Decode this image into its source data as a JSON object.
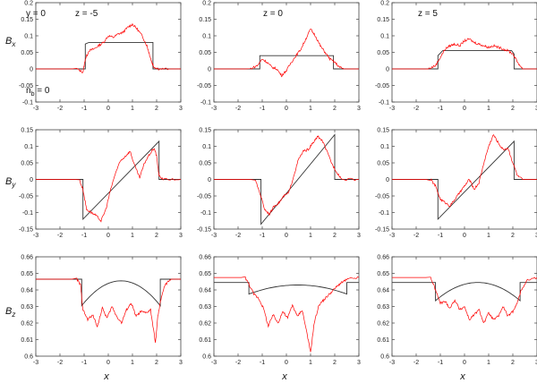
{
  "chart_data": {
    "type": "line",
    "layout": {
      "rows": 3,
      "columns": 3
    },
    "x_ticks": [
      "-3",
      "-2",
      "-1",
      "0",
      "1",
      "2",
      "3"
    ],
    "x_label_text": "x",
    "row_labels": [
      {
        "main": "B",
        "sub": "x"
      },
      {
        "main": "B",
        "sub": "y"
      },
      {
        "main": "B",
        "sub": "z"
      }
    ],
    "rows": [
      {
        "ylim": [
          -0.1,
          0.2
        ],
        "y_ticks": [
          "0.2",
          "0.15",
          "0.1",
          "0.05",
          "0",
          "-0.05",
          "-0.1"
        ],
        "y_tick_values": [
          0.2,
          0.15,
          0.1,
          0.05,
          0,
          -0.05,
          -0.1
        ]
      },
      {
        "ylim": [
          -0.15,
          0.15
        ],
        "y_ticks": [
          "0.15",
          "0.1",
          "0.05",
          "0",
          "-0.05",
          "-0.1",
          "-0.15"
        ],
        "y_tick_values": [
          0.15,
          0.1,
          0.05,
          0,
          -0.05,
          -0.1,
          -0.15
        ]
      },
      {
        "ylim": [
          0.6,
          0.66
        ],
        "y_ticks": [
          "0.66",
          "0.65",
          "0.64",
          "0.63",
          "0.62",
          "0.61",
          "0.6"
        ],
        "y_tick_values": [
          0.66,
          0.65,
          0.64,
          0.63,
          0.62,
          0.61,
          0.6
        ]
      }
    ],
    "annotations": [
      {
        "panel": 0,
        "text": "y = 0",
        "position": "top-left"
      },
      {
        "panel": 0,
        "text": "z = -5",
        "position": "top-center"
      },
      {
        "panel": 1,
        "text": "z = 0",
        "position": "top-center"
      },
      {
        "panel": 2,
        "text": "z = 5",
        "position": "top-center"
      },
      {
        "panel": 0,
        "text": "n_b = 0",
        "position": "bottom-left"
      }
    ],
    "colors": {
      "simulation": "#ff0000",
      "model": "#333333",
      "frame": "#444444"
    },
    "panels": [
      {
        "row": 0,
        "col": 0,
        "model": {
          "x": [
            -3,
            -0.95,
            -0.95,
            -0.8,
            1.85,
            1.85,
            3
          ],
          "y": [
            0,
            0,
            0.075,
            0.08,
            0.08,
            0,
            0
          ]
        },
        "sim": {
          "x": [
            -3,
            -1.3,
            -1.05,
            -0.95,
            -0.8,
            -0.6,
            -0.4,
            -0.2,
            0,
            0.2,
            0.4,
            0.6,
            0.8,
            1.0,
            1.2,
            1.4,
            1.6,
            1.7,
            1.8,
            1.9,
            2.1,
            2.5,
            3
          ],
          "y": [
            0,
            0,
            -0.01,
            0.03,
            0.055,
            0.06,
            0.07,
            0.08,
            0.1,
            0.095,
            0.105,
            0.11,
            0.125,
            0.135,
            0.12,
            0.1,
            0.07,
            0.045,
            0.02,
            0.005,
            0,
            0,
            0
          ]
        }
      },
      {
        "row": 0,
        "col": 1,
        "model": {
          "x": [
            -3,
            -1.1,
            -1.1,
            1.95,
            1.95,
            3
          ],
          "y": [
            0,
            0,
            0.04,
            0.04,
            0,
            0
          ]
        },
        "sim": {
          "x": [
            -3,
            -1.5,
            -1.2,
            -1.0,
            -0.8,
            -0.6,
            -0.4,
            -0.2,
            0,
            0.2,
            0.4,
            0.6,
            0.8,
            1.0,
            1.2,
            1.4,
            1.6,
            1.8,
            2.0,
            2.2,
            2.4,
            3
          ],
          "y": [
            0,
            0,
            0.01,
            0.03,
            0.02,
            0.005,
            0.0,
            -0.02,
            -0.005,
            0.02,
            0.04,
            0.06,
            0.09,
            0.12,
            0.1,
            0.07,
            0.05,
            0.03,
            0.02,
            0.005,
            0,
            0
          ]
        }
      },
      {
        "row": 0,
        "col": 2,
        "model": {
          "x": [
            -3,
            -1.1,
            -1.1,
            -0.9,
            1.95,
            2.05,
            2.05,
            3
          ],
          "y": [
            0,
            0,
            0.04,
            0.055,
            0.055,
            0.045,
            0,
            0
          ]
        },
        "sim": {
          "x": [
            -3,
            -1.5,
            -1.2,
            -1.0,
            -0.8,
            -0.6,
            -0.4,
            -0.2,
            0,
            0.2,
            0.4,
            0.6,
            0.8,
            1.0,
            1.2,
            1.4,
            1.6,
            1.8,
            2.0,
            2.2,
            2.4,
            3
          ],
          "y": [
            0,
            0,
            0.01,
            0.035,
            0.06,
            0.07,
            0.075,
            0.07,
            0.085,
            0.09,
            0.08,
            0.075,
            0.07,
            0.065,
            0.07,
            0.065,
            0.06,
            0.055,
            0.045,
            0.02,
            0,
            0
          ]
        }
      },
      {
        "row": 1,
        "col": 0,
        "model": {
          "x": [
            -3,
            -1.05,
            -1.05,
            2.1,
            2.1,
            3
          ],
          "y": [
            0,
            0,
            -0.12,
            0.115,
            0,
            0
          ]
        },
        "sim": {
          "x": [
            -3,
            -1.2,
            -1.05,
            -0.9,
            -0.7,
            -0.5,
            -0.3,
            -0.1,
            0.1,
            0.3,
            0.5,
            0.7,
            0.9,
            1.1,
            1.3,
            1.5,
            1.7,
            1.9,
            2.0,
            2.1,
            2.3,
            3
          ],
          "y": [
            0,
            0,
            -0.03,
            -0.09,
            -0.1,
            -0.11,
            -0.125,
            -0.09,
            -0.03,
            0.02,
            0.055,
            0.07,
            0.085,
            0.04,
            0.005,
            0.05,
            0.075,
            0.095,
            0.07,
            0.01,
            0,
            0
          ]
        }
      },
      {
        "row": 1,
        "col": 1,
        "model": {
          "x": [
            -3,
            -1.05,
            -1.05,
            2.0,
            2.0,
            3
          ],
          "y": [
            0,
            0,
            -0.135,
            0.135,
            0,
            0
          ]
        },
        "sim": {
          "x": [
            -3,
            -1.3,
            -1.1,
            -0.9,
            -0.7,
            -0.5,
            -0.3,
            -0.1,
            0.1,
            0.3,
            0.5,
            0.7,
            0.9,
            1.1,
            1.3,
            1.5,
            1.7,
            1.9,
            2.1,
            2.3,
            3
          ],
          "y": [
            0,
            0,
            -0.04,
            -0.09,
            -0.105,
            -0.08,
            -0.07,
            -0.05,
            -0.04,
            0.01,
            0.06,
            0.085,
            0.09,
            0.11,
            0.13,
            0.115,
            0.08,
            0.045,
            0.02,
            0,
            0
          ]
        }
      },
      {
        "row": 1,
        "col": 2,
        "model": {
          "x": [
            -3,
            -1.1,
            -1.1,
            2.05,
            2.05,
            3
          ],
          "y": [
            0,
            0,
            -0.12,
            0.115,
            0,
            0
          ]
        },
        "sim": {
          "x": [
            -3,
            -1.4,
            -1.2,
            -1.0,
            -0.8,
            -0.6,
            -0.4,
            -0.2,
            0,
            0.2,
            0.4,
            0.6,
            0.8,
            1.0,
            1.2,
            1.4,
            1.6,
            1.8,
            2.0,
            2.2,
            2.4,
            3
          ],
          "y": [
            0,
            0,
            -0.02,
            -0.06,
            -0.07,
            -0.08,
            -0.06,
            -0.04,
            -0.02,
            0.0,
            -0.03,
            -0.01,
            0.05,
            0.1,
            0.135,
            0.11,
            0.09,
            0.095,
            0.05,
            0.01,
            0,
            0
          ]
        }
      },
      {
        "row": 2,
        "col": 0,
        "model_plateau": {
          "x_left": -1.1,
          "x_right": 2.15,
          "outer": 0.6465,
          "edge": 0.6305,
          "peak": 0.6455
        },
        "sim": {
          "x": [
            -3,
            -1.3,
            -1.15,
            -1.05,
            -0.85,
            -0.65,
            -0.45,
            -0.25,
            -0.05,
            0.15,
            0.35,
            0.55,
            0.75,
            0.95,
            1.15,
            1.35,
            1.55,
            1.75,
            1.95,
            2.05,
            2.2,
            2.35,
            2.6,
            3
          ],
          "y": [
            0.6465,
            0.6465,
            0.643,
            0.628,
            0.622,
            0.625,
            0.618,
            0.629,
            0.623,
            0.63,
            0.624,
            0.62,
            0.628,
            0.632,
            0.624,
            0.627,
            0.626,
            0.628,
            0.608,
            0.624,
            0.636,
            0.643,
            0.6465,
            0.6465
          ]
        }
      },
      {
        "row": 2,
        "col": 1,
        "model_plateau": {
          "x_left": -1.55,
          "x_right": 2.5,
          "outer": 0.6445,
          "edge": 0.6375,
          "peak": 0.643
        },
        "sim": {
          "x": [
            -3,
            -1.7,
            -1.55,
            -1.35,
            -1.15,
            -0.95,
            -0.75,
            -0.55,
            -0.35,
            -0.15,
            0.05,
            0.25,
            0.45,
            0.65,
            0.85,
            1.0,
            1.15,
            1.35,
            1.55,
            1.75,
            1.95,
            2.15,
            2.35,
            2.55,
            3
          ],
          "y": [
            0.6475,
            0.6475,
            0.6435,
            0.6375,
            0.635,
            0.629,
            0.618,
            0.625,
            0.62,
            0.627,
            0.623,
            0.631,
            0.624,
            0.628,
            0.614,
            0.602,
            0.62,
            0.631,
            0.634,
            0.637,
            0.64,
            0.643,
            0.645,
            0.6465,
            0.6475
          ]
        }
      },
      {
        "row": 2,
        "col": 2,
        "model_plateau": {
          "x_left": -1.2,
          "x_right": 2.3,
          "outer": 0.6445,
          "edge": 0.6335,
          "peak": 0.6445
        },
        "sim": {
          "x": [
            -3,
            -1.4,
            -1.2,
            -1.0,
            -0.8,
            -0.6,
            -0.4,
            -0.2,
            0,
            0.2,
            0.4,
            0.6,
            0.8,
            1.0,
            1.2,
            1.4,
            1.6,
            1.8,
            2.0,
            2.2,
            2.35,
            2.6,
            3
          ],
          "y": [
            0.6475,
            0.6475,
            0.64,
            0.632,
            0.633,
            0.629,
            0.634,
            0.628,
            0.63,
            0.622,
            0.625,
            0.628,
            0.62,
            0.626,
            0.622,
            0.624,
            0.63,
            0.624,
            0.627,
            0.633,
            0.64,
            0.646,
            0.6475
          ]
        }
      }
    ]
  }
}
